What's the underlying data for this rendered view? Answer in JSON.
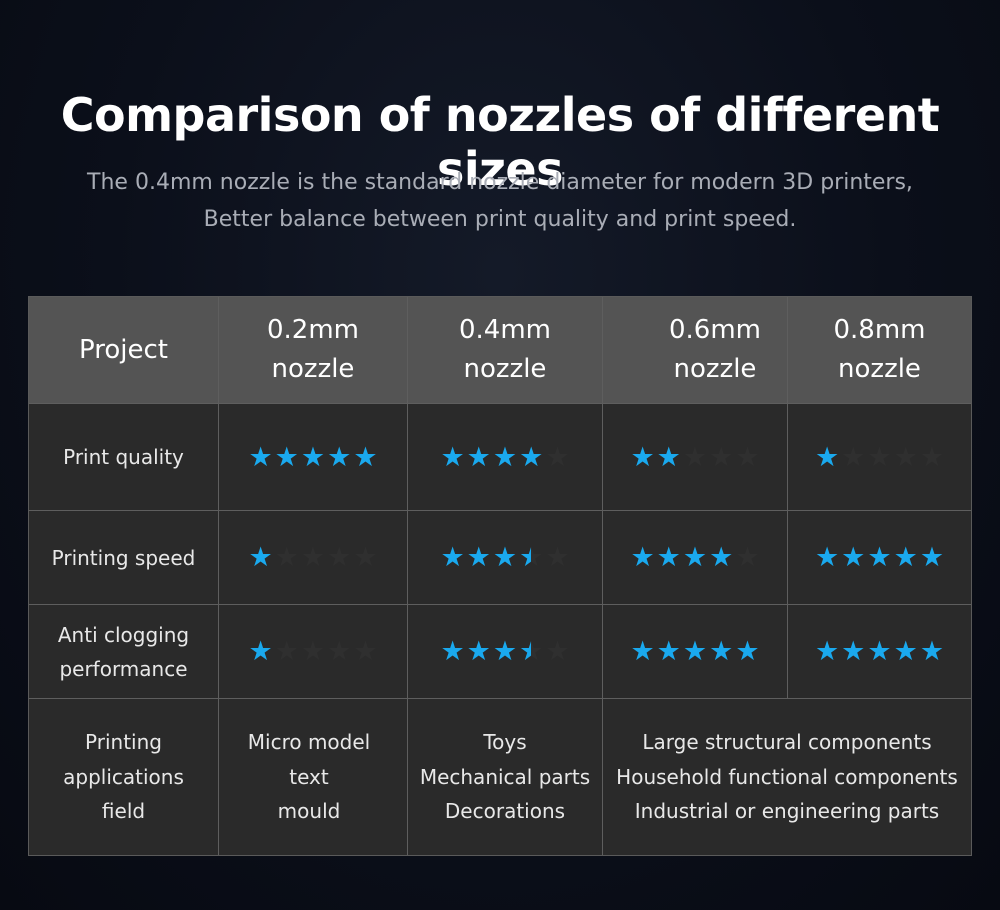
{
  "title": "Comparison of nozzles of different sizes",
  "subtitle": [
    "The 0.4mm nozzle is the standard nozzle diameter for modern 3D printers,",
    "Better balance between print quality and print speed."
  ],
  "colors": {
    "star_on": "#1aa9ee",
    "star_off": "#2f2f2f",
    "header_bg": "#545454",
    "body_bg": "#2a2a2a"
  },
  "table": {
    "header": {
      "project": "Project",
      "nozzles": [
        [
          "0.2mm",
          "nozzle"
        ],
        [
          "0.4mm",
          "nozzle"
        ],
        [
          "0.6mm",
          "nozzle"
        ],
        [
          "0.8mm",
          "nozzle"
        ]
      ]
    },
    "rows": [
      {
        "label": [
          "Print quality"
        ],
        "ratings": [
          5,
          4,
          2,
          1
        ]
      },
      {
        "label": [
          "Printing speed"
        ],
        "ratings": [
          1,
          3.5,
          4,
          5
        ]
      },
      {
        "label": [
          "Anti clogging",
          "performance"
        ],
        "ratings": [
          1,
          3.5,
          5,
          5
        ]
      }
    ],
    "applications": {
      "label": [
        "Printing",
        "applications",
        "field"
      ],
      "nozzle_02": [
        "Micro model",
        "text",
        "mould"
      ],
      "nozzle_04": [
        "Toys",
        "Mechanical parts",
        "Decorations"
      ],
      "nozzle_06_08": [
        "Large structural components",
        "Household functional components",
        "Industrial or engineering parts"
      ]
    }
  }
}
